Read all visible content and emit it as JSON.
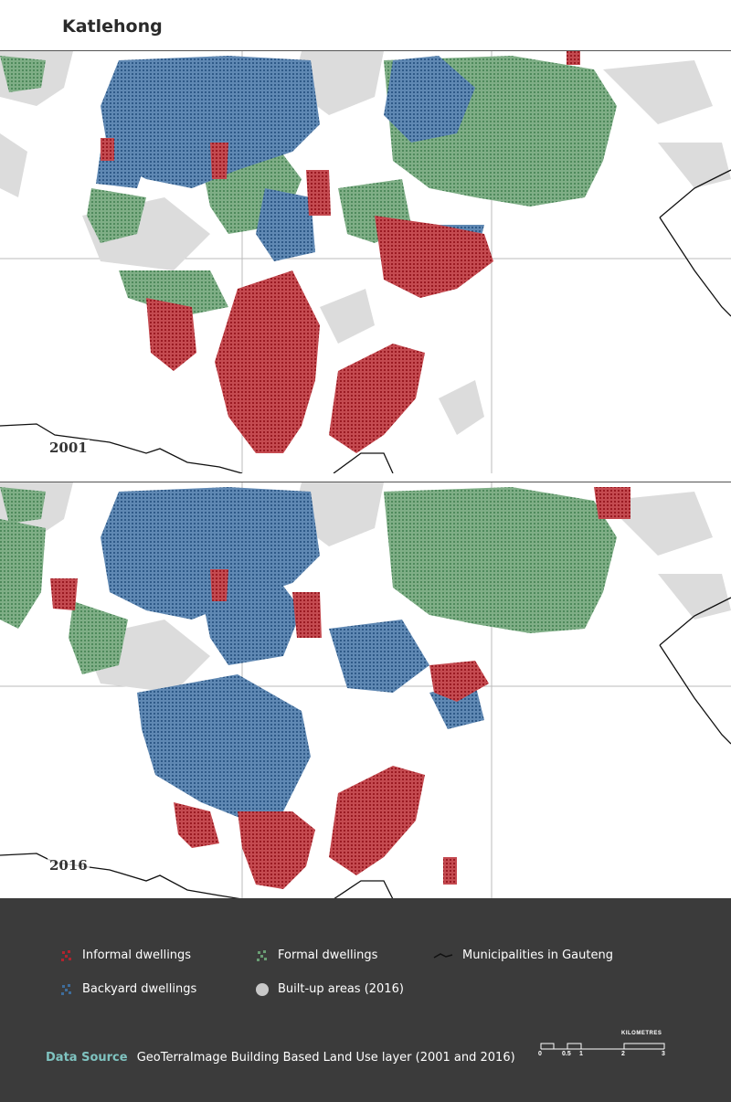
{
  "title": "Katlehong",
  "maps": [
    {
      "year": "2001"
    },
    {
      "year": "2016"
    }
  ],
  "legend": {
    "informal": {
      "label": "Informal dwellings",
      "color": "#b3232d"
    },
    "formal": {
      "label": "Formal dwellings",
      "color": "#6a9e74"
    },
    "municipalities": {
      "label": "Municipalities in Gauteng",
      "color": "#111111"
    },
    "backyard": {
      "label": "Backyard dwellings",
      "color": "#3e6d9c"
    },
    "builtup": {
      "label": "Built-up areas (2016)",
      "color": "#d6d6d6"
    }
  },
  "source": {
    "label": "Data Source",
    "text": "GeoTerraImage Building Based Land Use layer (2001 and 2016)"
  },
  "scale": {
    "unit": "KILOMETRES",
    "ticks": [
      "0",
      "0.5",
      "1",
      "2",
      "3"
    ]
  }
}
